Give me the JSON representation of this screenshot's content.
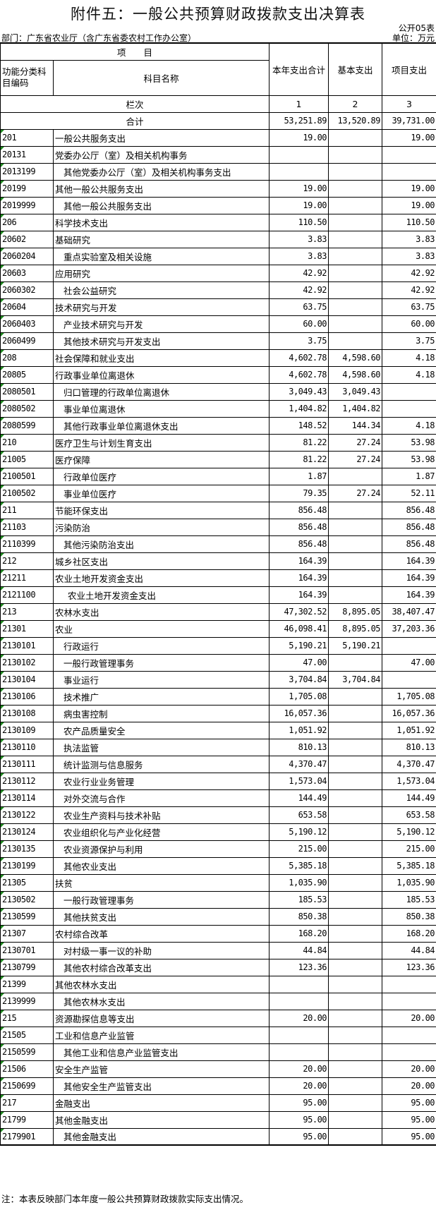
{
  "title": "附件五：一般公共预算财政拨款支出决算表",
  "form_no": "公开05表",
  "department": "部门：广东省农业厅（含广东省委农村工作办公室）",
  "unit": "单位：万元",
  "header": {
    "project": "项　　目",
    "code": "功能分类科目编码",
    "name": "科目名称",
    "col1": "本年支出合计",
    "col2": "基本支出",
    "col3": "项目支出",
    "row_index_label": "栏次",
    "col1_index": "1",
    "col2_index": "2",
    "col3_index": "3"
  },
  "total": {
    "label": "合计",
    "col1": "53,251.89",
    "col2": "13,520.89",
    "col3": "39,731.00"
  },
  "colors": {
    "marker": "#1e8a1e",
    "border": "#000000"
  },
  "rows": [
    {
      "code": "201",
      "name": "一般公共服务支出",
      "level": 0,
      "c1": "19.00",
      "c2": "",
      "c3": "19.00"
    },
    {
      "code": "20131",
      "name": "党委办公厅（室）及相关机构事务",
      "level": 0,
      "c1": "",
      "c2": "",
      "c3": ""
    },
    {
      "code": "2013199",
      "name": "其他党委办公厅（室）及相关机构事务支出",
      "level": 1,
      "c1": "",
      "c2": "",
      "c3": ""
    },
    {
      "code": "20199",
      "name": "其他一般公共服务支出",
      "level": 0,
      "c1": "19.00",
      "c2": "",
      "c3": "19.00"
    },
    {
      "code": "2019999",
      "name": "其他一般公共服务支出",
      "level": 1,
      "c1": "19.00",
      "c2": "",
      "c3": "19.00"
    },
    {
      "code": "206",
      "name": "科学技术支出",
      "level": 0,
      "c1": "110.50",
      "c2": "",
      "c3": "110.50"
    },
    {
      "code": "20602",
      "name": "基础研究",
      "level": 0,
      "c1": "3.83",
      "c2": "",
      "c3": "3.83"
    },
    {
      "code": "2060204",
      "name": "重点实验室及相关设施",
      "level": 1,
      "c1": "3.83",
      "c2": "",
      "c3": "3.83"
    },
    {
      "code": "20603",
      "name": "应用研究",
      "level": 0,
      "c1": "42.92",
      "c2": "",
      "c3": "42.92"
    },
    {
      "code": "2060302",
      "name": "社会公益研究",
      "level": 1,
      "c1": "42.92",
      "c2": "",
      "c3": "42.92"
    },
    {
      "code": "20604",
      "name": "技术研究与开发",
      "level": 0,
      "c1": "63.75",
      "c2": "",
      "c3": "63.75"
    },
    {
      "code": "2060403",
      "name": "产业技术研究与开发",
      "level": 1,
      "c1": "60.00",
      "c2": "",
      "c3": "60.00"
    },
    {
      "code": "2060499",
      "name": "其他技术研究与开发支出",
      "level": 1,
      "c1": "3.75",
      "c2": "",
      "c3": "3.75"
    },
    {
      "code": "208",
      "name": "社会保障和就业支出",
      "level": 0,
      "c1": "4,602.78",
      "c2": "4,598.60",
      "c3": "4.18"
    },
    {
      "code": "20805",
      "name": "行政事业单位离退休",
      "level": 0,
      "c1": "4,602.78",
      "c2": "4,598.60",
      "c3": "4.18"
    },
    {
      "code": "2080501",
      "name": "归口管理的行政单位离退休",
      "level": 1,
      "c1": "3,049.43",
      "c2": "3,049.43",
      "c3": ""
    },
    {
      "code": "2080502",
      "name": "事业单位离退休",
      "level": 1,
      "c1": "1,404.82",
      "c2": "1,404.82",
      "c3": ""
    },
    {
      "code": "2080599",
      "name": "其他行政事业单位离退休支出",
      "level": 1,
      "c1": "148.52",
      "c2": "144.34",
      "c3": "4.18"
    },
    {
      "code": "210",
      "name": "医疗卫生与计划生育支出",
      "level": 0,
      "c1": "81.22",
      "c2": "27.24",
      "c3": "53.98"
    },
    {
      "code": "21005",
      "name": "医疗保障",
      "level": 0,
      "c1": "81.22",
      "c2": "27.24",
      "c3": "53.98"
    },
    {
      "code": "2100501",
      "name": "行政单位医疗",
      "level": 1,
      "c1": "1.87",
      "c2": "",
      "c3": "1.87"
    },
    {
      "code": "2100502",
      "name": "事业单位医疗",
      "level": 1,
      "c1": "79.35",
      "c2": "27.24",
      "c3": "52.11"
    },
    {
      "code": "211",
      "name": "节能环保支出",
      "level": 0,
      "c1": "856.48",
      "c2": "",
      "c3": "856.48"
    },
    {
      "code": "21103",
      "name": "污染防治",
      "level": 0,
      "c1": "856.48",
      "c2": "",
      "c3": "856.48"
    },
    {
      "code": "2110399",
      "name": "其他污染防治支出",
      "level": 1,
      "c1": "856.48",
      "c2": "",
      "c3": "856.48"
    },
    {
      "code": "212",
      "name": "城乡社区支出",
      "level": 0,
      "c1": "164.39",
      "c2": "",
      "c3": "164.39"
    },
    {
      "code": "21211",
      "name": "农业土地开发资金支出",
      "level": 0,
      "c1": "164.39",
      "c2": "",
      "c3": "164.39"
    },
    {
      "code": "2121100",
      "name": "农业土地开发资金支出",
      "level": 2,
      "c1": "164.39",
      "c2": "",
      "c3": "164.39"
    },
    {
      "code": "213",
      "name": "农林水支出",
      "level": 0,
      "c1": "47,302.52",
      "c2": "8,895.05",
      "c3": "38,407.47"
    },
    {
      "code": "21301",
      "name": "农业",
      "level": 0,
      "c1": "46,098.41",
      "c2": "8,895.05",
      "c3": "37,203.36"
    },
    {
      "code": "2130101",
      "name": "行政运行",
      "level": 1,
      "c1": "5,190.21",
      "c2": "5,190.21",
      "c3": ""
    },
    {
      "code": "2130102",
      "name": "一般行政管理事务",
      "level": 1,
      "c1": "47.00",
      "c2": "",
      "c3": "47.00"
    },
    {
      "code": "2130104",
      "name": "事业运行",
      "level": 1,
      "c1": "3,704.84",
      "c2": "3,704.84",
      "c3": ""
    },
    {
      "code": "2130106",
      "name": "技术推广",
      "level": 1,
      "c1": "1,705.08",
      "c2": "",
      "c3": "1,705.08"
    },
    {
      "code": "2130108",
      "name": "病虫害控制",
      "level": 1,
      "c1": "16,057.36",
      "c2": "",
      "c3": "16,057.36"
    },
    {
      "code": "2130109",
      "name": "农产品质量安全",
      "level": 1,
      "c1": "1,051.92",
      "c2": "",
      "c3": "1,051.92"
    },
    {
      "code": "2130110",
      "name": "执法监管",
      "level": 1,
      "c1": "810.13",
      "c2": "",
      "c3": "810.13"
    },
    {
      "code": "2130111",
      "name": "统计监测与信息服务",
      "level": 1,
      "c1": "4,370.47",
      "c2": "",
      "c3": "4,370.47"
    },
    {
      "code": "2130112",
      "name": "农业行业业务管理",
      "level": 1,
      "c1": "1,573.04",
      "c2": "",
      "c3": "1,573.04"
    },
    {
      "code": "2130114",
      "name": "对外交流与合作",
      "level": 1,
      "c1": "144.49",
      "c2": "",
      "c3": "144.49"
    },
    {
      "code": "2130122",
      "name": "农业生产资料与技术补贴",
      "level": 1,
      "c1": "653.58",
      "c2": "",
      "c3": "653.58"
    },
    {
      "code": "2130124",
      "name": "农业组织化与产业化经营",
      "level": 1,
      "c1": "5,190.12",
      "c2": "",
      "c3": "5,190.12"
    },
    {
      "code": "2130135",
      "name": "农业资源保护与利用",
      "level": 1,
      "c1": "215.00",
      "c2": "",
      "c3": "215.00"
    },
    {
      "code": "2130199",
      "name": "其他农业支出",
      "level": 1,
      "c1": "5,385.18",
      "c2": "",
      "c3": "5,385.18"
    },
    {
      "code": "21305",
      "name": "扶贫",
      "level": 0,
      "c1": "1,035.90",
      "c2": "",
      "c3": "1,035.90"
    },
    {
      "code": "2130502",
      "name": "一般行政管理事务",
      "level": 1,
      "c1": "185.53",
      "c2": "",
      "c3": "185.53"
    },
    {
      "code": "2130599",
      "name": "其他扶贫支出",
      "level": 1,
      "c1": "850.38",
      "c2": "",
      "c3": "850.38"
    },
    {
      "code": "21307",
      "name": "农村综合改革",
      "level": 0,
      "c1": "168.20",
      "c2": "",
      "c3": "168.20"
    },
    {
      "code": "2130701",
      "name": "对村级一事一议的补助",
      "level": 1,
      "c1": "44.84",
      "c2": "",
      "c3": "44.84"
    },
    {
      "code": "2130799",
      "name": "其他农村综合改革支出",
      "level": 1,
      "c1": "123.36",
      "c2": "",
      "c3": "123.36"
    },
    {
      "code": "21399",
      "name": "其他农林水支出",
      "level": 0,
      "c1": "",
      "c2": "",
      "c3": ""
    },
    {
      "code": "2139999",
      "name": "其他农林水支出",
      "level": 1,
      "c1": "",
      "c2": "",
      "c3": ""
    },
    {
      "code": "215",
      "name": "资源勘探信息等支出",
      "level": 0,
      "c1": "20.00",
      "c2": "",
      "c3": "20.00"
    },
    {
      "code": "21505",
      "name": "工业和信息产业监管",
      "level": 0,
      "c1": "",
      "c2": "",
      "c3": ""
    },
    {
      "code": "2150599",
      "name": "其他工业和信息产业监管支出",
      "level": 1,
      "c1": "",
      "c2": "",
      "c3": ""
    },
    {
      "code": "21506",
      "name": "安全生产监管",
      "level": 0,
      "c1": "20.00",
      "c2": "",
      "c3": "20.00"
    },
    {
      "code": "2150699",
      "name": "其他安全生产监管支出",
      "level": 1,
      "c1": "20.00",
      "c2": "",
      "c3": "20.00"
    },
    {
      "code": "217",
      "name": "金融支出",
      "level": 0,
      "c1": "95.00",
      "c2": "",
      "c3": "95.00"
    },
    {
      "code": "21799",
      "name": "其他金融支出",
      "level": 0,
      "c1": "95.00",
      "c2": "",
      "c3": "95.00"
    },
    {
      "code": "2179901",
      "name": "其他金融支出",
      "level": 1,
      "c1": "95.00",
      "c2": "",
      "c3": "95.00"
    }
  ],
  "note": "注：本表反映部门本年度一般公共预算财政拨款实际支出情况。"
}
